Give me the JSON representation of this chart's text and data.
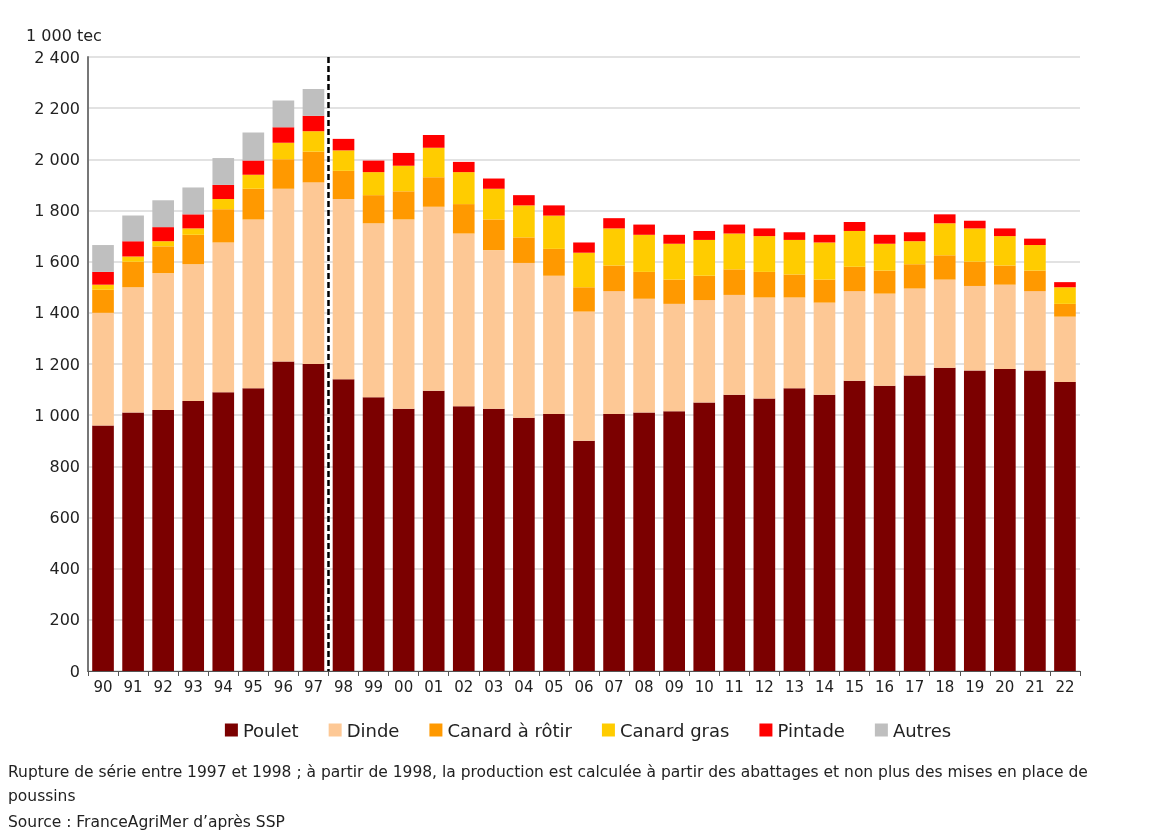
{
  "chart_data": {
    "type": "bar",
    "stacked": true,
    "ylabel": "1 000 tec",
    "categories": [
      "90",
      "91",
      "92",
      "93",
      "94",
      "95",
      "96",
      "97",
      "98",
      "99",
      "00",
      "01",
      "02",
      "03",
      "04",
      "05",
      "06",
      "07",
      "08",
      "09",
      "10",
      "11",
      "12",
      "13",
      "14",
      "15",
      "16",
      "17",
      "18",
      "19",
      "20",
      "21",
      "22"
    ],
    "series": [
      {
        "name": "Poulet",
        "color": "#7b0000",
        "values": [
          960,
          1010,
          1020,
          1055,
          1090,
          1105,
          1210,
          1200,
          1140,
          1070,
          1025,
          1095,
          1035,
          1025,
          990,
          1005,
          900,
          1005,
          1010,
          1015,
          1050,
          1080,
          1065,
          1105,
          1080,
          1135,
          1115,
          1155,
          1185,
          1175,
          1180,
          1175,
          1130
        ]
      },
      {
        "name": "Dinde",
        "color": "#fdc895",
        "values": [
          440,
          490,
          535,
          535,
          585,
          660,
          675,
          710,
          705,
          680,
          740,
          720,
          675,
          620,
          605,
          540,
          505,
          480,
          445,
          420,
          400,
          390,
          395,
          355,
          360,
          350,
          360,
          340,
          345,
          330,
          330,
          310,
          255
        ]
      },
      {
        "name": "Canard à rôtir",
        "color": "#ff9900",
        "values": [
          90,
          100,
          105,
          115,
          130,
          120,
          115,
          120,
          110,
          110,
          110,
          115,
          115,
          120,
          100,
          105,
          95,
          100,
          105,
          95,
          95,
          100,
          100,
          90,
          90,
          95,
          90,
          95,
          95,
          95,
          75,
          80,
          50
        ]
      },
      {
        "name": "Canard gras",
        "color": "#ffcc00",
        "values": [
          20,
          20,
          20,
          25,
          40,
          55,
          65,
          80,
          80,
          90,
          100,
          115,
          125,
          120,
          125,
          130,
          135,
          145,
          145,
          140,
          140,
          140,
          140,
          135,
          145,
          140,
          105,
          90,
          125,
          130,
          115,
          100,
          65
        ]
      },
      {
        "name": "Pintade",
        "color": "#ff0000",
        "values": [
          50,
          60,
          55,
          55,
          55,
          55,
          60,
          60,
          45,
          45,
          50,
          50,
          40,
          40,
          40,
          40,
          40,
          40,
          40,
          35,
          35,
          35,
          30,
          30,
          30,
          35,
          35,
          35,
          35,
          30,
          30,
          25,
          20
        ]
      },
      {
        "name": "Autres",
        "color": "#bfbfbf",
        "values": [
          105,
          100,
          105,
          105,
          105,
          110,
          105,
          105,
          null,
          null,
          null,
          null,
          null,
          null,
          null,
          null,
          null,
          null,
          null,
          null,
          null,
          null,
          null,
          null,
          null,
          null,
          null,
          null,
          null,
          null,
          null,
          null,
          null
        ]
      }
    ],
    "ylim": [
      0,
      2400
    ],
    "yticks": [
      0,
      200,
      400,
      600,
      800,
      {
        "value": 1000,
        "label": "1 000"
      },
      {
        "value": 1200,
        "label": "1 200"
      },
      {
        "value": 1400,
        "label": "1 400"
      },
      {
        "value": 1600,
        "label": "1 600"
      },
      {
        "value": 1800,
        "label": "1 800"
      },
      {
        "value": 2000,
        "label": "2 000"
      },
      {
        "value": 2200,
        "label": "2 200"
      },
      {
        "value": 2400,
        "label": "2 400"
      }
    ],
    "ref_lines": [
      {
        "axis": "x",
        "value": "97",
        "color": "#000000",
        "line_style": "dashed"
      }
    ],
    "grid": "y",
    "legend": "bottom",
    "annotations": [
      "Rupture de série entre 1997 et 1998 ; à partir de 1998, la production est calculée à partir des abattages et non plus des mises en place de poussins",
      "Source : FranceAgriMer d’après SSP"
    ]
  }
}
